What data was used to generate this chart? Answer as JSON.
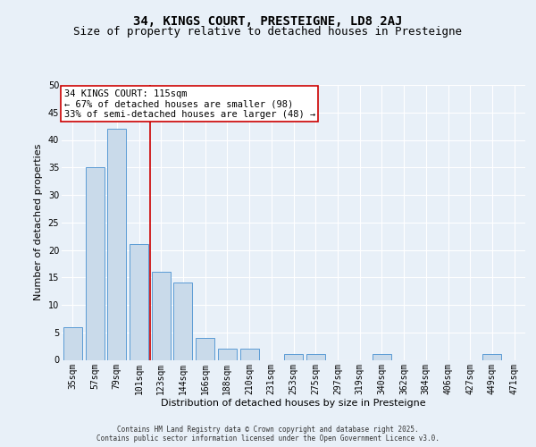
{
  "title1": "34, KINGS COURT, PRESTEIGNE, LD8 2AJ",
  "title2": "Size of property relative to detached houses in Presteigne",
  "xlabel": "Distribution of detached houses by size in Presteigne",
  "ylabel": "Number of detached properties",
  "categories": [
    "35sqm",
    "57sqm",
    "79sqm",
    "101sqm",
    "123sqm",
    "144sqm",
    "166sqm",
    "188sqm",
    "210sqm",
    "231sqm",
    "253sqm",
    "275sqm",
    "297sqm",
    "319sqm",
    "340sqm",
    "362sqm",
    "384sqm",
    "406sqm",
    "427sqm",
    "449sqm",
    "471sqm"
  ],
  "values": [
    6,
    35,
    42,
    21,
    16,
    14,
    4,
    2,
    2,
    0,
    1,
    1,
    0,
    0,
    1,
    0,
    0,
    0,
    0,
    1,
    0
  ],
  "bar_color": "#c9daea",
  "bar_edge_color": "#5b9bd5",
  "annotation_line1": "34 KINGS COURT: 115sqm",
  "annotation_line2": "← 67% of detached houses are smaller (98)",
  "annotation_line3": "33% of semi-detached houses are larger (48) →",
  "vline_x_index": 3.5,
  "vline_color": "#cc0000",
  "annotation_box_color": "#ffffff",
  "annotation_box_edge": "#cc0000",
  "ylim": [
    0,
    50
  ],
  "yticks": [
    0,
    5,
    10,
    15,
    20,
    25,
    30,
    35,
    40,
    45,
    50
  ],
  "bg_color": "#e8f0f8",
  "plot_bg_color": "#e8f0f8",
  "footer": "Contains HM Land Registry data © Crown copyright and database right 2025.\nContains public sector information licensed under the Open Government Licence v3.0.",
  "title_fontsize": 10,
  "subtitle_fontsize": 9,
  "tick_fontsize": 7,
  "label_fontsize": 8,
  "annotation_fontsize": 7.5,
  "footer_fontsize": 5.5
}
